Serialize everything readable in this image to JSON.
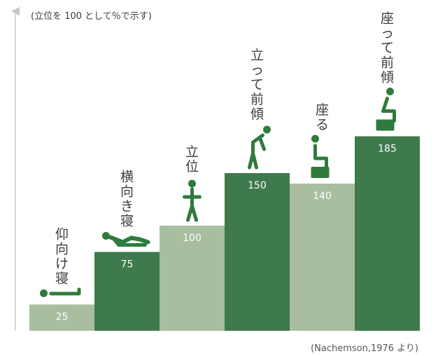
{
  "colors": {
    "dark": "#3e7a4c",
    "light": "#a9bd9f",
    "figure": "#2f7a3c",
    "axis": "#c7c7c7",
    "label": "#3c3c3c"
  },
  "source_note": "(Nachemson,1976 より)",
  "chart_data": {
    "type": "bar",
    "ylabel": "(立位を 100 として％で示す)",
    "categories": [
      "仰向け寝",
      "横向き寝",
      "立位",
      "立って前傾",
      "座る",
      "座って前傾"
    ],
    "values": [
      25,
      75,
      100,
      150,
      140,
      185
    ],
    "value_labels": [
      "25",
      "75",
      "100",
      "150",
      "140",
      "185"
    ],
    "shades": [
      "light",
      "dark",
      "light",
      "dark",
      "light",
      "dark"
    ],
    "icons": [
      "lying-supine-icon",
      "lying-side-icon",
      "standing-icon",
      "standing-lean-icon",
      "sitting-icon",
      "sitting-lean-icon"
    ],
    "ylim": [
      0,
      200
    ],
    "grid": false,
    "legend": "none"
  }
}
